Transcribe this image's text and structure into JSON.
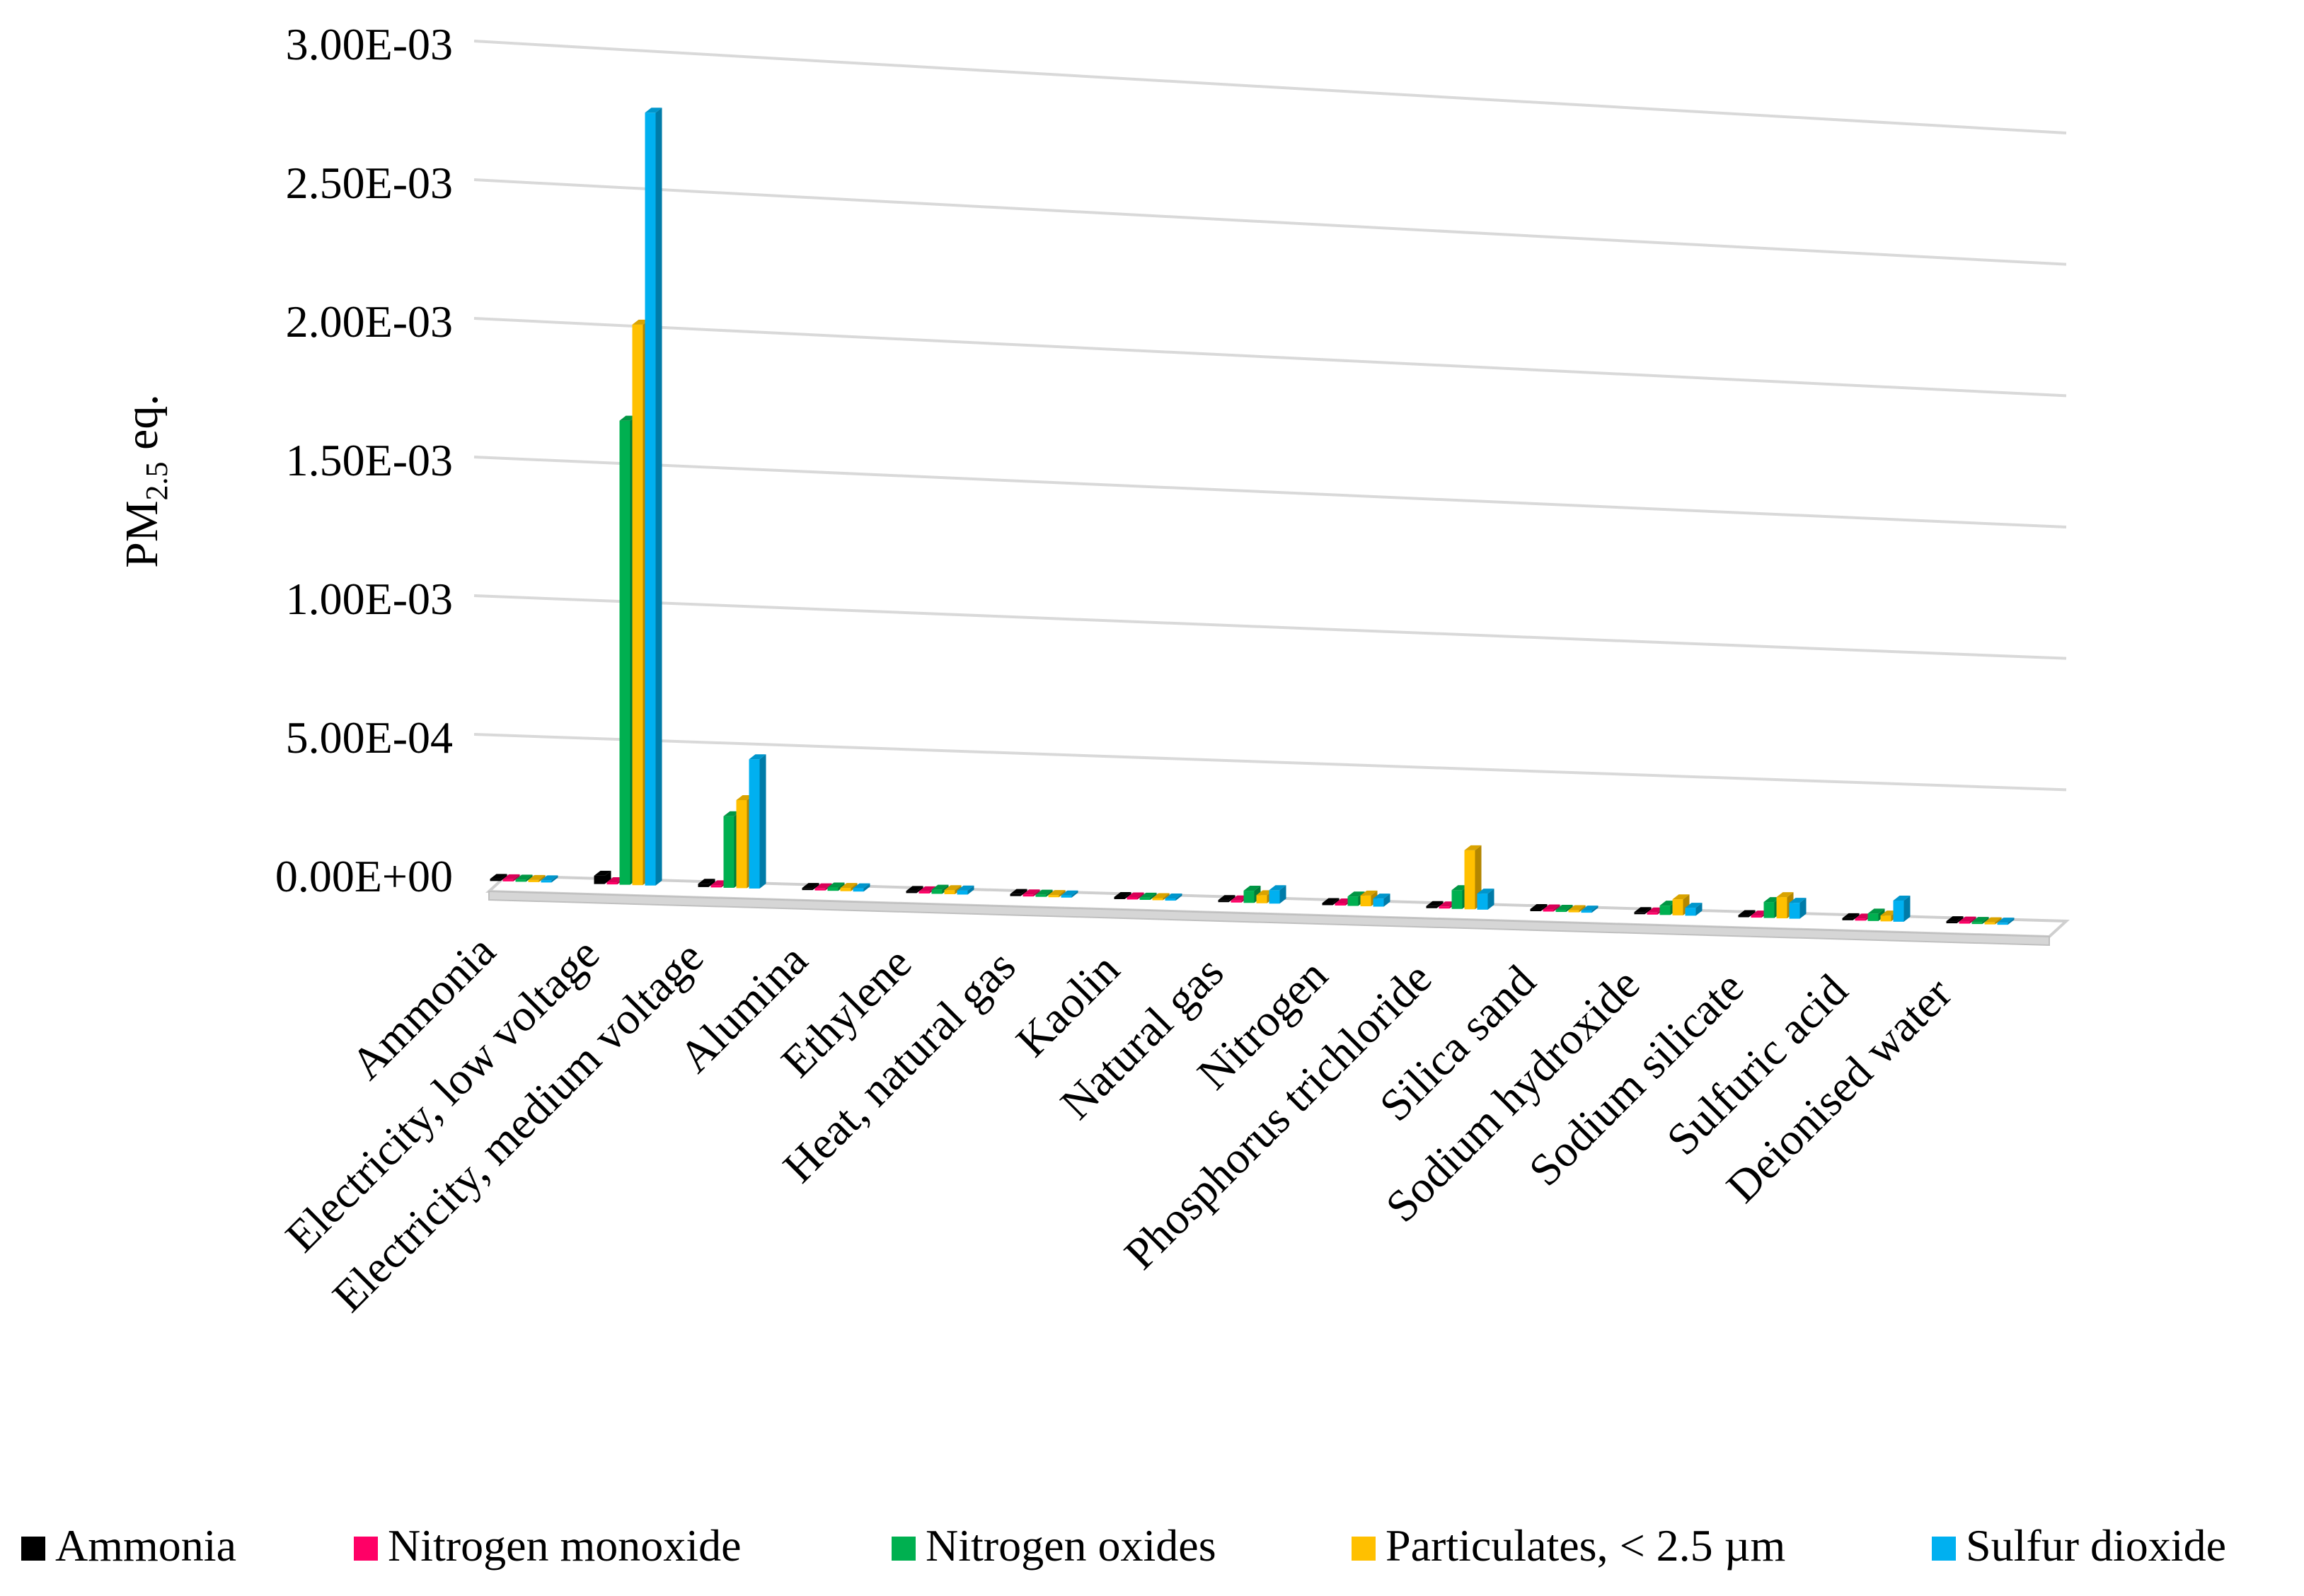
{
  "chart_data": {
    "type": "bar",
    "title": "",
    "xlabel": "",
    "ylabel": {
      "main": "PM",
      "sub": "2.5",
      "suffix": " eq."
    },
    "ylim": [
      0,
      0.003
    ],
    "ytick_values": [
      0,
      0.0005,
      0.001,
      0.0015,
      0.002,
      0.0025,
      0.003
    ],
    "ytick_labels": [
      "0.00E+00",
      "5.00E-04",
      "1.00E-03",
      "1.50E-03",
      "2.00E-03",
      "2.50E-03",
      "3.00E-03"
    ],
    "grid": true,
    "legend_position": "bottom",
    "categories": [
      "Ammonia",
      "Electricity, low voltage",
      "Electricity, medium voltage",
      "Alumina",
      "Ethylene",
      "Heat, natural gas",
      "Kaolin",
      "Natural gas",
      "Nitrogen",
      "Phosphorus trichloride",
      "Silica sand",
      "Sodium hydroxide",
      "Sodium silicate",
      "Sulfuric acid",
      "Deionised water"
    ],
    "series": [
      {
        "name": "Ammonia",
        "color": "#000000",
        "values": [
          3e-06,
          3e-05,
          1.2e-05,
          2e-06,
          2e-06,
          1e-06,
          1e-06,
          3e-06,
          4e-06,
          4e-06,
          2e-06,
          4e-06,
          5e-06,
          3e-06,
          1e-06
        ]
      },
      {
        "name": "Nitrogen monoxide",
        "color": "#FF0066",
        "values": [
          1e-06,
          8e-06,
          2e-06,
          1e-06,
          1e-06,
          1e-06,
          1e-06,
          2e-06,
          2e-06,
          2e-06,
          1e-06,
          2e-06,
          2e-06,
          2e-06,
          1e-06
        ]
      },
      {
        "name": "Nitrogen oxides",
        "color": "#00B050",
        "values": [
          4e-06,
          0.00168,
          0.00026,
          1.2e-05,
          1.5e-05,
          8e-06,
          8e-06,
          4.5e-05,
          3.5e-05,
          7e-05,
          8e-06,
          3.5e-05,
          6e-05,
          2.8e-05,
          5e-06
        ]
      },
      {
        "name": "Particulates, < 2.5 µm",
        "color": "#FFC000",
        "values": [
          3e-06,
          0.00203,
          0.00032,
          1.2e-05,
          1.5e-05,
          8e-06,
          8e-06,
          3e-05,
          4e-05,
          0.00022,
          8e-06,
          6e-05,
          8e-05,
          2.2e-05,
          5e-06
        ]
      },
      {
        "name": "Sulfur dioxide",
        "color": "#00B0F0",
        "values": [
          4e-06,
          0.0028,
          0.00047,
          1.2e-05,
          1.5e-05,
          8e-06,
          8e-06,
          5e-05,
          3e-05,
          6e-05,
          8e-06,
          3e-05,
          6e-05,
          8e-05,
          5e-06
        ]
      }
    ]
  }
}
